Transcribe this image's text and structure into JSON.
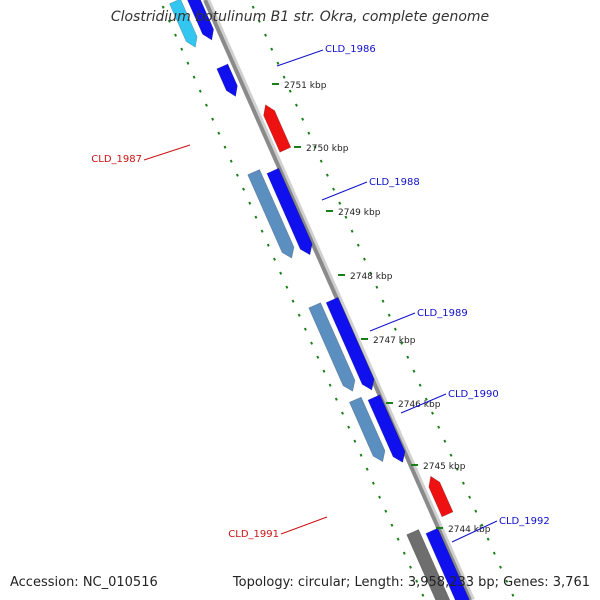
{
  "title": "Clostridium botulinum B1 str. Okra, complete genome",
  "footer": {
    "accession": "Accession: NC_010516",
    "summary": "Topology: circular; Length: 3,958,233 bp; Genes: 3,761"
  },
  "colors": {
    "backbone": "#8a8a8a",
    "dots": "#1a7f1a",
    "gene_blue": "#1010ee",
    "gene_steel": "#5b8fbf",
    "gene_cyan": "#33c6f0",
    "gene_red": "#ee1111",
    "gene_gray": "#6e6e6e",
    "label_blue": "#1010cc",
    "label_red": "#cc1111"
  },
  "ticks": [
    "2751 kbp",
    "2750 kbp",
    "2749 kbp",
    "2748 kbp",
    "2747 kbp",
    "2746 kbp",
    "2745 kbp",
    "2744 kbp"
  ],
  "genes": [
    "CLD_1986",
    "CLD_1987",
    "CLD_1988",
    "CLD_1989",
    "CLD_1990",
    "CLD_1991",
    "CLD_1992"
  ]
}
